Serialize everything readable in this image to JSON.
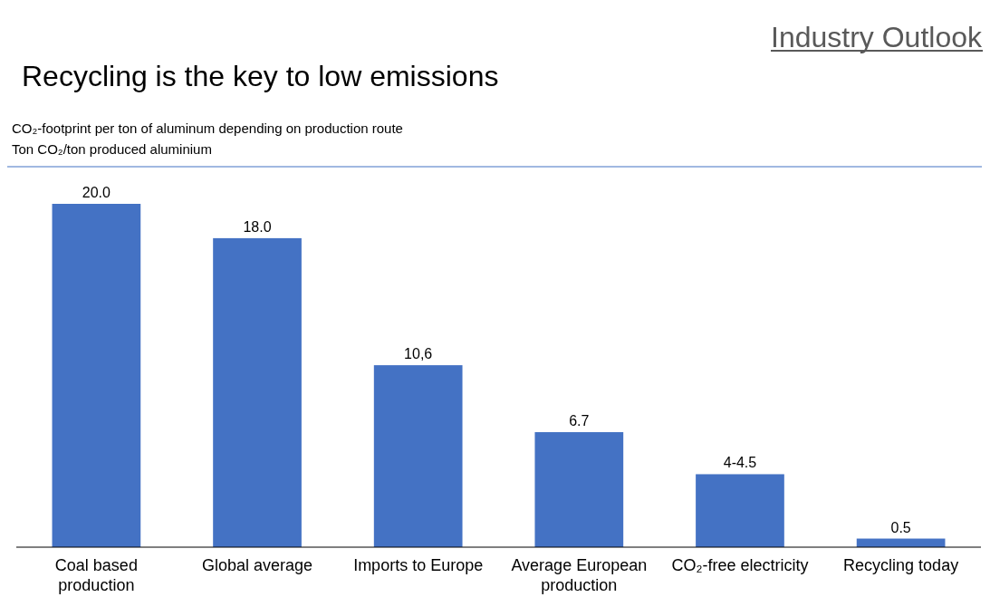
{
  "chart_data": {
    "type": "bar",
    "title": "Recycling is the key to low emissions",
    "subtitle": "CO₂-footprint per ton of aluminum depending on production route",
    "ylabel": "Ton CO₂/ton produced aluminium",
    "annotations": [
      "Industry Outlook"
    ],
    "categories": [
      "Coal based production",
      "Global average",
      "Imports to Europe",
      "Average European production",
      "CO₂-free electricity",
      "Recycling today"
    ],
    "values": [
      20.0,
      18.0,
      10.6,
      6.7,
      4.25,
      0.5
    ],
    "value_labels": [
      "20.0",
      "18.0",
      "10,6",
      "6.7",
      "4-4.5",
      "0.5"
    ],
    "color": "#4472c4"
  }
}
